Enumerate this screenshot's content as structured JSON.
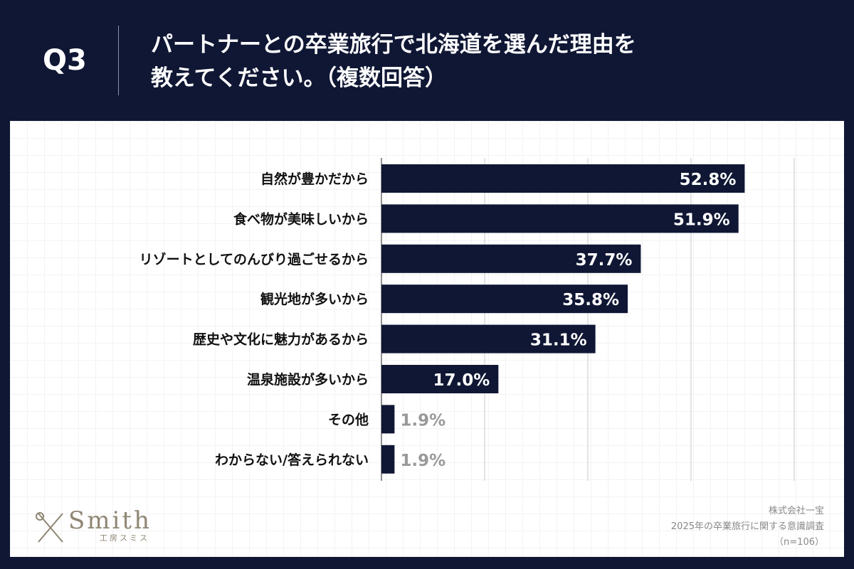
{
  "header": {
    "q": "Q3",
    "title_line1": "パートナーとの卒業旅行で北海道を選んだ理由を",
    "title_line2": "教えてください。（複数回答）"
  },
  "chart_data": {
    "type": "bar",
    "orientation": "horizontal",
    "categories": [
      "自然が豊かだから",
      "食べ物が美味しいから",
      "リゾートとしてのんびり過ごせるから",
      "観光地が多いから",
      "歴史や文化に魅力があるから",
      "温泉施設が多いから",
      "その他",
      "わからない/答えられない"
    ],
    "values": [
      52.8,
      51.9,
      37.7,
      35.8,
      31.1,
      17.0,
      1.9,
      1.9
    ],
    "labels": [
      "52.8%",
      "51.9%",
      "37.7%",
      "35.8%",
      "31.1%",
      "17.0%",
      "1.9%",
      "1.9%"
    ],
    "xlim": [
      0,
      60
    ],
    "grid_ticks": [
      0,
      15,
      30,
      45,
      60
    ],
    "grid": true,
    "bar_color": "#0f1734",
    "inside_label_color": "#ffffff",
    "outside_label_color": "#999999"
  },
  "footer": {
    "company": "株式会社一宝",
    "survey": "2025年の卒業旅行に関する意識調査",
    "n": "（n=106）"
  },
  "logo": {
    "name": "Smith",
    "sub": "工房スミス"
  }
}
